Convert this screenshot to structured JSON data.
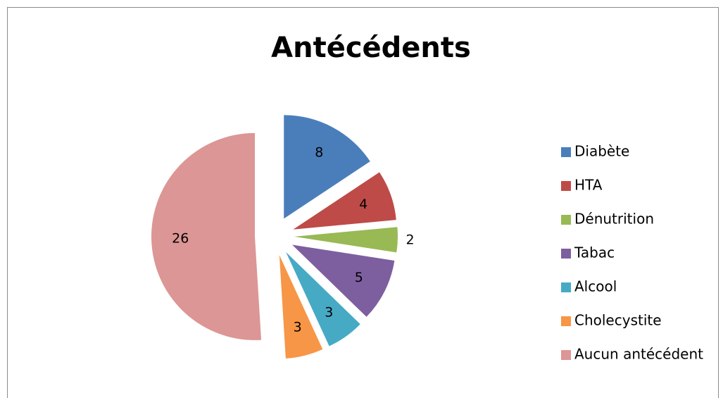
{
  "chart_data": {
    "type": "pie",
    "title": "Antécédents",
    "categories": [
      "Diabète",
      "HTA",
      "Dénutrition",
      "Tabac",
      "Alcool",
      "Cholecystite",
      "Aucun antécédent"
    ],
    "values": [
      8,
      4,
      2,
      5,
      3,
      3,
      26
    ],
    "colors": [
      "#4a7ebb",
      "#be4b48",
      "#98b954",
      "#7d5fa0",
      "#46aac5",
      "#f79646",
      "#dc9695"
    ],
    "exploded": true,
    "legend": "right"
  }
}
